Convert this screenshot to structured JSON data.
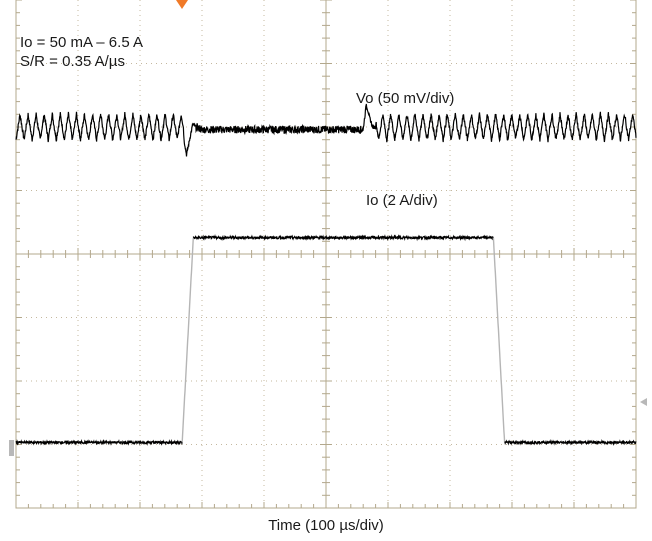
{
  "chart_data": {
    "type": "line",
    "title": "",
    "xlabel": "Time (100 µs/div)",
    "ylabel": "",
    "grid": true,
    "annotations": {
      "line1": "Io = 50 mA – 6.5 A",
      "line2": "S/R = 0.35 A/µs"
    },
    "divisions": {
      "x": 10,
      "y": 8
    },
    "xlim_us": [
      0,
      1000
    ],
    "series": [
      {
        "name": "Vo (50 mV/div)",
        "color": "#000000",
        "unit": "mV",
        "volts_per_div": 50,
        "ripple_pp_mV": 20,
        "ripple_period_us": 13,
        "x_us": [
          0,
          270,
          271,
          275,
          280,
          285,
          290,
          300,
          560,
          565,
          570,
          575,
          580,
          1000
        ],
        "y_mV": [
          0,
          0,
          -10,
          -22,
          -10,
          2,
          0,
          -2,
          -2,
          18,
          8,
          0,
          0,
          0
        ]
      },
      {
        "name": "Io (2 A/div)",
        "color": "#000000",
        "edge_color": "#b5b5b5",
        "unit": "A",
        "amps_per_div": 2,
        "x_us": [
          0,
          268,
          286,
          770,
          788,
          1000
        ],
        "y_A": [
          0.05,
          0.05,
          6.5,
          6.5,
          0.05,
          0.05
        ]
      }
    ]
  },
  "labels": {
    "vo": "Vo (50 mV/div)",
    "io": "Io (2 A/div)"
  }
}
